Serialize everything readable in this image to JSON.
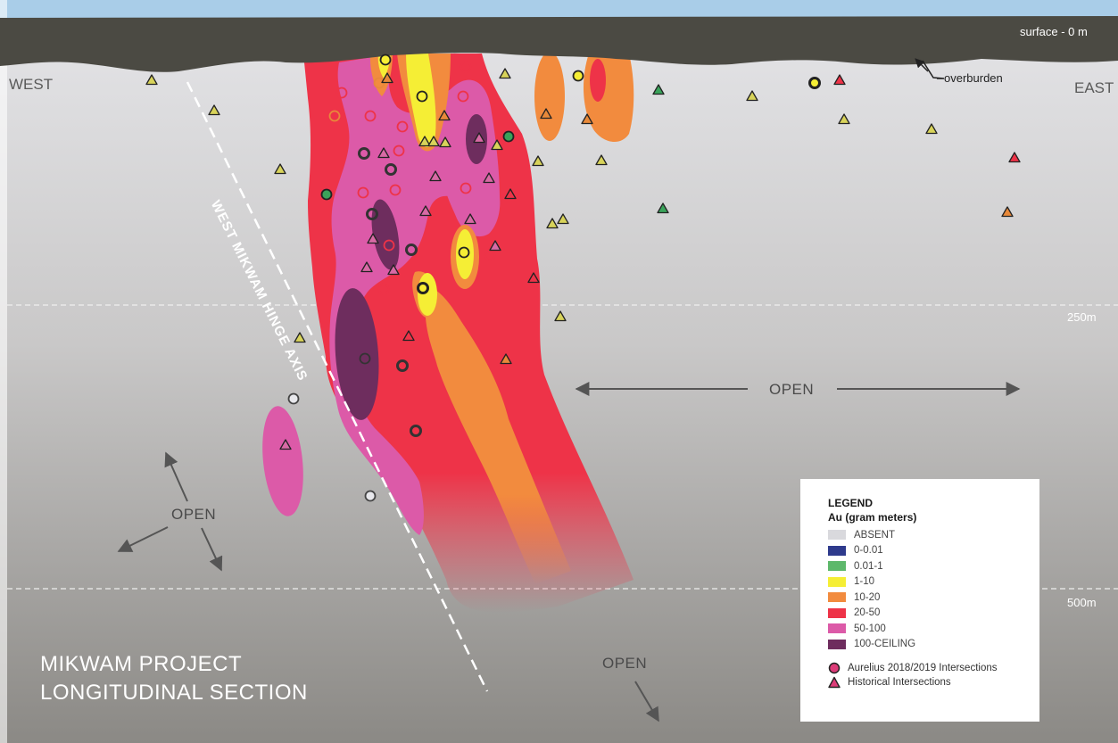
{
  "labels": {
    "west": "WEST",
    "east": "EAST",
    "surface": "surface - 0 m",
    "overburden": "overburden",
    "depth_250": "250m",
    "depth_500": "500m",
    "open_east": "OPEN",
    "open_west": "OPEN",
    "open_bottom": "OPEN",
    "hinge_axis": "WEST MIKWAM HINGE AXIS"
  },
  "title": {
    "line1": "MIKWAM PROJECT",
    "line2": "LONGITUDINAL SECTION"
  },
  "legend": {
    "heading": "LEGEND",
    "subheading": "Au (gram meters)",
    "items": [
      {
        "label": "ABSENT",
        "color": "#d9d9dd"
      },
      {
        "label": "0-0.01",
        "color": "#2e3a8c"
      },
      {
        "label": "0.01-1",
        "color": "#5db86b"
      },
      {
        "label": "1-10",
        "color": "#f5ee35"
      },
      {
        "label": "10-20",
        "color": "#f28b3e"
      },
      {
        "label": "20-50",
        "color": "#ee3348"
      },
      {
        "label": "50-100",
        "color": "#dc5aa8"
      },
      {
        "label": "100-CEILING",
        "color": "#6e2d5e"
      }
    ],
    "symbols": [
      {
        "label": "Aurelius 2018/2019 Intersections",
        "shape": "circle",
        "color": "#dc3c78"
      },
      {
        "label": "Historical Intersections",
        "shape": "triangle",
        "color": "#dc3c78"
      }
    ]
  },
  "colors": {
    "overburden": "#4b4a43",
    "sky": "#a9cde8",
    "ground_top": "#e3e3e6",
    "ground_bottom": "#8c8a86"
  }
}
